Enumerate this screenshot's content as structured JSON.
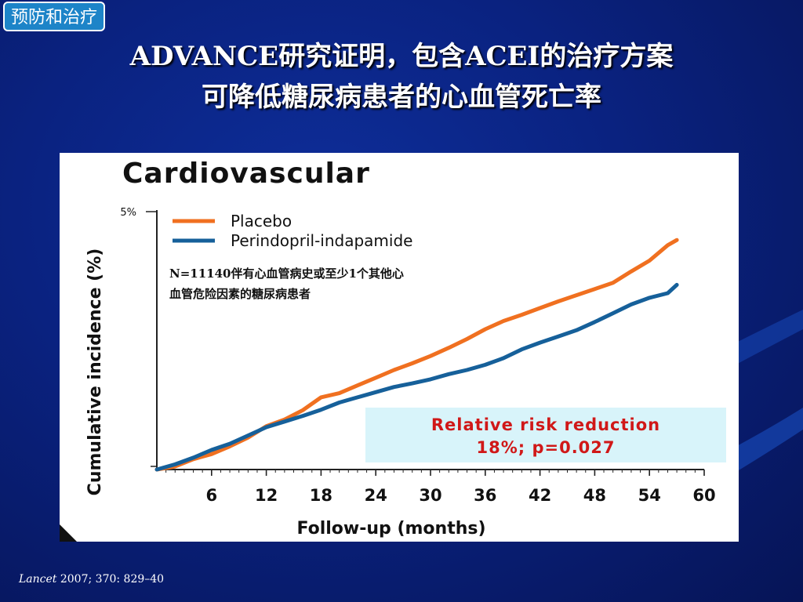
{
  "tag": "预防和治疗",
  "title_line1": "ADVANCE研究证明，包含ACEI的治疗方案",
  "title_line2": "可降低糖尿病患者的心血管死亡率",
  "citation": {
    "journal": "Lancet",
    "rest": " 2007; 370: 829–40"
  },
  "colors": {
    "placebo": "#f07020",
    "treatment": "#16609a",
    "rrr_text": "#d01818",
    "rrr_box": "#d8f4fa"
  },
  "chart_data": {
    "type": "line",
    "title": "Cardiovascular",
    "xlabel": "Follow-up (months)",
    "ylabel": "Cumulative incidence (%)",
    "xlim": [
      0,
      60
    ],
    "ylim": [
      0,
      5
    ],
    "x_ticks": [
      6,
      12,
      18,
      24,
      30,
      36,
      42,
      48,
      54,
      60
    ],
    "y_tick_label": "5%",
    "legend_position": "top-left",
    "annotation_line1": "N=11140伴有心血管病史或至少1个其他心",
    "annotation_line2": "血管危险因素的糖尿病患者",
    "rrr_line1": "Relative risk reduction",
    "rrr_line2": "18%;  p=0.027",
    "series": [
      {
        "name": "Placebo",
        "x": [
          0,
          2,
          4,
          6,
          8,
          10,
          12,
          14,
          16,
          18,
          20,
          22,
          24,
          26,
          28,
          30,
          32,
          34,
          36,
          38,
          40,
          42,
          44,
          46,
          48,
          50,
          52,
          54,
          56,
          57
        ],
        "y": [
          0.0,
          0.06,
          0.2,
          0.3,
          0.45,
          0.62,
          0.84,
          0.97,
          1.15,
          1.4,
          1.48,
          1.63,
          1.78,
          1.93,
          2.06,
          2.2,
          2.36,
          2.53,
          2.72,
          2.88,
          3.0,
          3.13,
          3.26,
          3.38,
          3.5,
          3.62,
          3.84,
          4.05,
          4.35,
          4.45
        ]
      },
      {
        "name": "Perindopril-indapamide",
        "x": [
          0,
          2,
          4,
          6,
          8,
          10,
          12,
          14,
          16,
          18,
          20,
          22,
          24,
          26,
          28,
          30,
          32,
          34,
          36,
          38,
          40,
          42,
          44,
          46,
          48,
          50,
          52,
          54,
          56,
          57
        ],
        "y": [
          0.0,
          0.1,
          0.23,
          0.38,
          0.5,
          0.66,
          0.82,
          0.93,
          1.04,
          1.16,
          1.3,
          1.4,
          1.5,
          1.6,
          1.67,
          1.75,
          1.85,
          1.93,
          2.03,
          2.16,
          2.33,
          2.46,
          2.58,
          2.7,
          2.86,
          3.03,
          3.2,
          3.33,
          3.42,
          3.58
        ]
      }
    ]
  }
}
